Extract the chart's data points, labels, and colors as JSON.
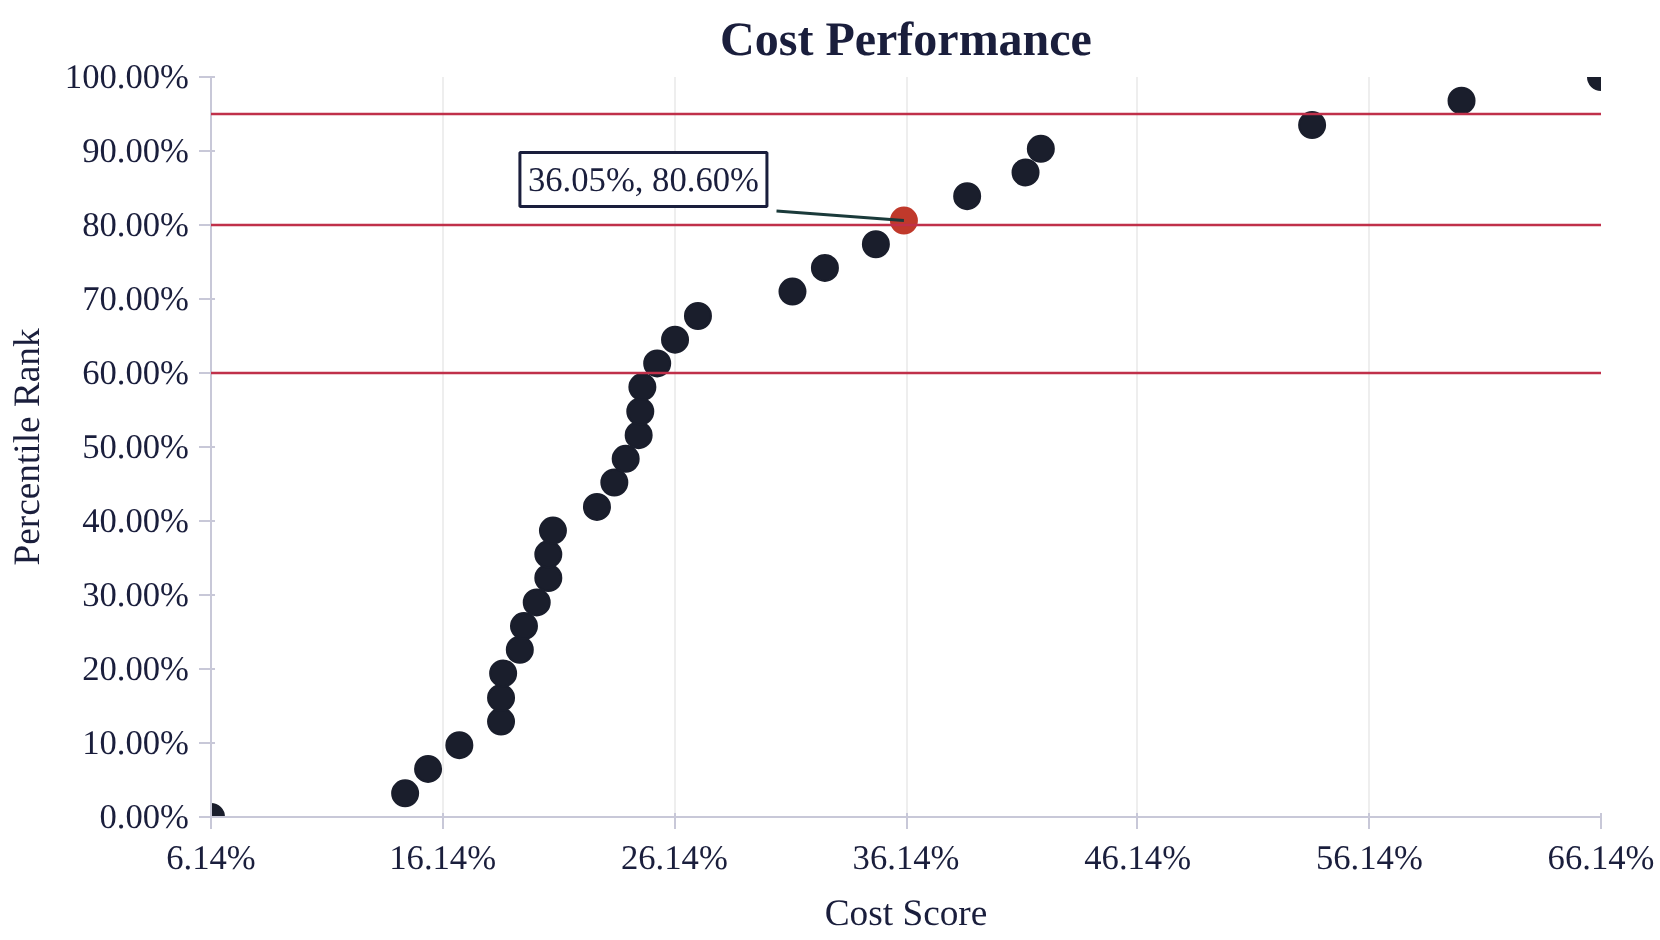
{
  "chart_data": {
    "type": "scatter",
    "title": "Cost Performance",
    "xlabel": "Cost Score",
    "ylabel": "Percentile Rank",
    "series": [
      {
        "color": "#1a1e2c",
        "x": [
          6.14,
          14.52,
          15.51,
          16.86,
          18.66,
          18.66,
          18.75,
          19.47,
          19.65,
          20.2,
          20.7,
          20.7,
          20.9,
          22.8,
          23.55,
          24.04,
          24.6,
          24.67,
          24.76,
          25.4,
          26.17,
          27.16,
          31.24,
          32.64,
          34.84,
          38.78,
          41.3,
          41.96,
          53.67,
          60.12,
          66.14
        ],
        "values": [
          0,
          3.2,
          6.5,
          9.7,
          12.9,
          16.1,
          19.4,
          22.6,
          25.8,
          29.0,
          32.3,
          35.5,
          38.7,
          41.9,
          45.2,
          48.4,
          51.6,
          54.8,
          58.1,
          61.3,
          64.5,
          67.7,
          71.0,
          74.2,
          77.4,
          83.9,
          87.1,
          90.3,
          93.5,
          96.8,
          100
        ]
      },
      {
        "color": "#c0392b",
        "x": [
          36.05
        ],
        "values": [
          80.6
        ]
      }
    ],
    "annotations": [
      {
        "text": "36.05%, 80.60%",
        "x": 36.05,
        "y": 80.6
      }
    ],
    "ref_lines": [
      {
        "axis": "y",
        "value": 95,
        "color": "#c0304a"
      },
      {
        "axis": "y",
        "value": 80,
        "color": "#c0304a"
      },
      {
        "axis": "y",
        "value": 60,
        "color": "#c0304a"
      }
    ],
    "marker": "circle",
    "grid": "x",
    "xlim": [
      6.14,
      66.14
    ],
    "ylim": [
      0,
      100
    ],
    "xticks": [
      {
        "value": 6.14,
        "label": "6.14%"
      },
      {
        "value": 16.14,
        "label": "16.14%"
      },
      {
        "value": 26.14,
        "label": "26.14%"
      },
      {
        "value": 36.14,
        "label": "36.14%"
      },
      {
        "value": 46.14,
        "label": "46.14%"
      },
      {
        "value": 56.14,
        "label": "56.14%"
      },
      {
        "value": 66.14,
        "label": "66.14%"
      }
    ],
    "yticks": [
      {
        "value": 0,
        "label": "0.00%"
      },
      {
        "value": 10,
        "label": "10.00%"
      },
      {
        "value": 20,
        "label": "20.00%"
      },
      {
        "value": 30,
        "label": "30.00%"
      },
      {
        "value": 40,
        "label": "40.00%"
      },
      {
        "value": 50,
        "label": "50.00%"
      },
      {
        "value": 60,
        "label": "60.00%"
      },
      {
        "value": 70,
        "label": "70.00%"
      },
      {
        "value": 80,
        "label": "80.00%"
      },
      {
        "value": 90,
        "label": "90.00%"
      },
      {
        "value": 100,
        "label": "100.00%"
      }
    ]
  }
}
